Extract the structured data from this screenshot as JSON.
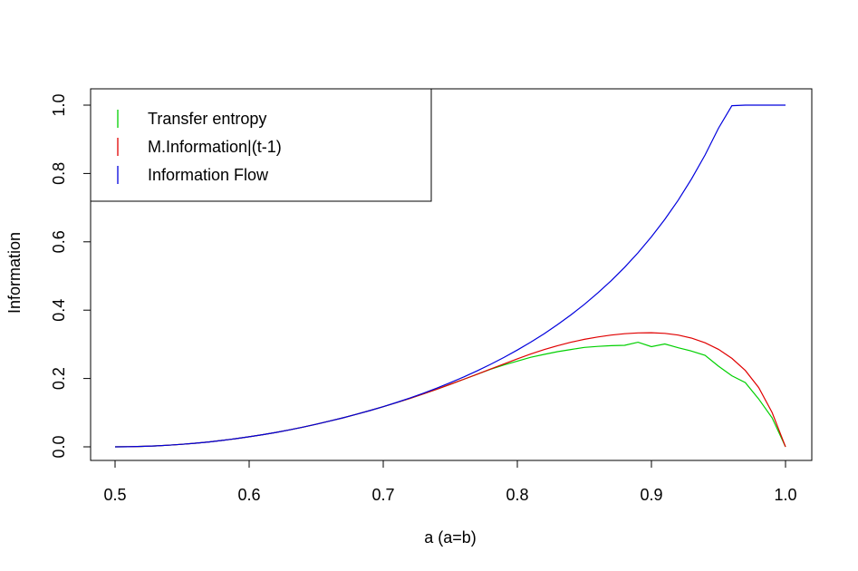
{
  "chart_data": {
    "type": "line",
    "title": "",
    "xlabel": "a (a=b)",
    "ylabel": "Information",
    "xlim": [
      0.5,
      1.0
    ],
    "ylim": [
      0.0,
      1.0
    ],
    "xticks": [
      "0.5",
      "0.6",
      "0.7",
      "0.8",
      "0.9",
      "1.0"
    ],
    "yticks": [
      "0.0",
      "0.2",
      "0.4",
      "0.6",
      "0.8",
      "1.0"
    ],
    "grid": false,
    "legend_position": "top-left",
    "x": [
      0.5,
      0.51,
      0.52,
      0.53,
      0.54,
      0.55,
      0.56,
      0.57,
      0.58,
      0.59,
      0.6,
      0.61,
      0.62,
      0.63,
      0.64,
      0.65,
      0.66,
      0.67,
      0.68,
      0.69,
      0.7,
      0.71,
      0.72,
      0.73,
      0.74,
      0.75,
      0.76,
      0.77,
      0.78,
      0.79,
      0.8,
      0.81,
      0.82,
      0.83,
      0.84,
      0.85,
      0.86,
      0.87,
      0.88,
      0.89,
      0.9,
      0.91,
      0.92,
      0.93,
      0.94,
      0.95,
      0.96,
      0.97,
      0.98,
      0.99,
      1.0
    ],
    "series": [
      {
        "name": "Transfer entropy",
        "color": "#00d000",
        "values": [
          0.0,
          0.0003,
          0.0012,
          0.0026,
          0.0047,
          0.0073,
          0.0105,
          0.0144,
          0.0188,
          0.0238,
          0.0294,
          0.0356,
          0.0423,
          0.0497,
          0.0576,
          0.0661,
          0.0752,
          0.0849,
          0.0952,
          0.106,
          0.1175,
          0.1295,
          0.142,
          0.1551,
          0.1688,
          0.1829,
          0.1975,
          0.2125,
          0.227,
          0.2395,
          0.251,
          0.262,
          0.2705,
          0.2785,
          0.285,
          0.291,
          0.294,
          0.296,
          0.297,
          0.306,
          0.293,
          0.301,
          0.29,
          0.28,
          0.268,
          0.236,
          0.208,
          0.188,
          0.14,
          0.085,
          0.0
        ]
      },
      {
        "name": "M.Information|(t-1)",
        "color": "#e00000",
        "values": [
          0.0,
          0.0003,
          0.0012,
          0.0026,
          0.0047,
          0.0073,
          0.0105,
          0.0144,
          0.0188,
          0.0238,
          0.0294,
          0.0356,
          0.0423,
          0.0497,
          0.0576,
          0.0661,
          0.0752,
          0.0849,
          0.0952,
          0.106,
          0.1175,
          0.1295,
          0.142,
          0.1551,
          0.1688,
          0.1829,
          0.1975,
          0.2125,
          0.2275,
          0.2425,
          0.2575,
          0.2715,
          0.2845,
          0.296,
          0.306,
          0.3145,
          0.3215,
          0.327,
          0.331,
          0.3335,
          0.334,
          0.332,
          0.327,
          0.318,
          0.3045,
          0.2855,
          0.259,
          0.2235,
          0.1735,
          0.1005,
          0.0
        ]
      },
      {
        "name": "Information Flow",
        "color": "#0000dd",
        "values": [
          0.0,
          0.0003,
          0.0012,
          0.0026,
          0.0047,
          0.0073,
          0.0105,
          0.0144,
          0.0188,
          0.0238,
          0.0294,
          0.0356,
          0.0423,
          0.0497,
          0.0576,
          0.0661,
          0.0752,
          0.0849,
          0.0952,
          0.106,
          0.1176,
          0.1299,
          0.1431,
          0.157,
          0.1719,
          0.1877,
          0.2045,
          0.2223,
          0.2413,
          0.2616,
          0.2832,
          0.3064,
          0.3311,
          0.3577,
          0.3862,
          0.4171,
          0.4503,
          0.4863,
          0.5254,
          0.568,
          0.6146,
          0.6657,
          0.7221,
          0.7846,
          0.8542,
          0.9323,
          0.9985,
          1.0,
          1.0,
          1.0,
          1.0
        ]
      }
    ]
  }
}
